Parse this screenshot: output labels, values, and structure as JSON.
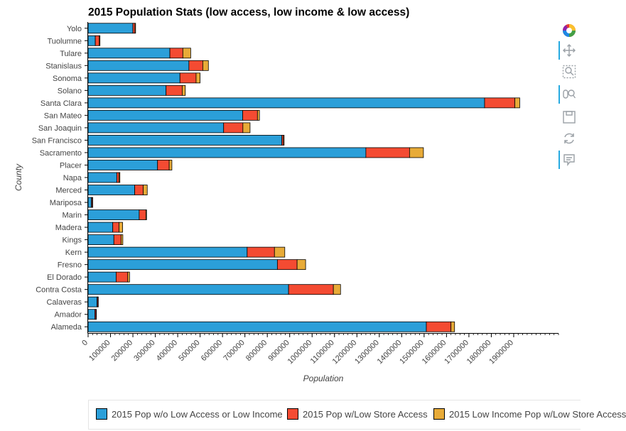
{
  "chart_data": {
    "type": "bar",
    "orientation": "horizontal",
    "stacked": true,
    "title": "2015 Population Stats (low access, low income & low access)",
    "xlabel": "Population",
    "ylabel": "County",
    "xlim": [
      0,
      2100000
    ],
    "xticks": [
      0,
      100000,
      200000,
      300000,
      400000,
      500000,
      600000,
      700000,
      800000,
      900000,
      1000000,
      1100000,
      1200000,
      1300000,
      1400000,
      1500000,
      1600000,
      1700000,
      1800000,
      1900000
    ],
    "grid": false,
    "legend_position": "bottom",
    "categories": [
      "Alameda",
      "Amador",
      "Calaveras",
      "Contra Costa",
      "El Dorado",
      "Fresno",
      "Kern",
      "Kings",
      "Madera",
      "Marin",
      "Mariposa",
      "Merced",
      "Napa",
      "Placer",
      "Sacramento",
      "San Francisco",
      "San Joaquin",
      "San Mateo",
      "Santa Clara",
      "Solano",
      "Sonoma",
      "Stanislaus",
      "Tulare",
      "Tuolumne",
      "Yolo"
    ],
    "series": [
      {
        "name": "2015 Pop w/o Low Access or Low Income",
        "color": "#2b9fd9",
        "values": [
          1510000,
          30000,
          40000,
          895000,
          125000,
          845000,
          710000,
          115000,
          110000,
          228000,
          15000,
          208000,
          128000,
          310000,
          1240000,
          865000,
          605000,
          690000,
          1770000,
          348000,
          410000,
          450000,
          365000,
          32000,
          200000
        ]
      },
      {
        "name": "2015 Pop w/Low Store Access",
        "color": "#f44b32",
        "values": [
          110000,
          5000,
          4000,
          200000,
          52000,
          88000,
          122000,
          32000,
          28000,
          30000,
          4000,
          38000,
          10000,
          52000,
          195000,
          7000,
          86000,
          66000,
          135000,
          72000,
          72000,
          62000,
          58000,
          18000,
          9000
        ]
      },
      {
        "name": "2015 Low Income Pop w/Low Store Access",
        "color": "#e8ab38",
        "values": [
          16000,
          2000,
          1000,
          32000,
          8000,
          38000,
          46000,
          8000,
          16000,
          3000,
          1000,
          18000,
          4000,
          12000,
          62000,
          3000,
          32000,
          9000,
          22000,
          14000,
          18000,
          25000,
          35000,
          3000,
          3000
        ]
      }
    ]
  },
  "toolbar": {
    "tools": [
      {
        "name": "bokeh-logo-icon",
        "active": false
      },
      {
        "name": "pan-tool-icon",
        "active": true
      },
      {
        "name": "box-zoom-tool-icon",
        "active": false
      },
      {
        "name": "wheel-zoom-tool-icon",
        "active": true
      },
      {
        "name": "save-tool-icon",
        "active": false
      },
      {
        "name": "reset-tool-icon",
        "active": false
      },
      {
        "name": "hover-tool-icon",
        "active": true
      }
    ]
  }
}
